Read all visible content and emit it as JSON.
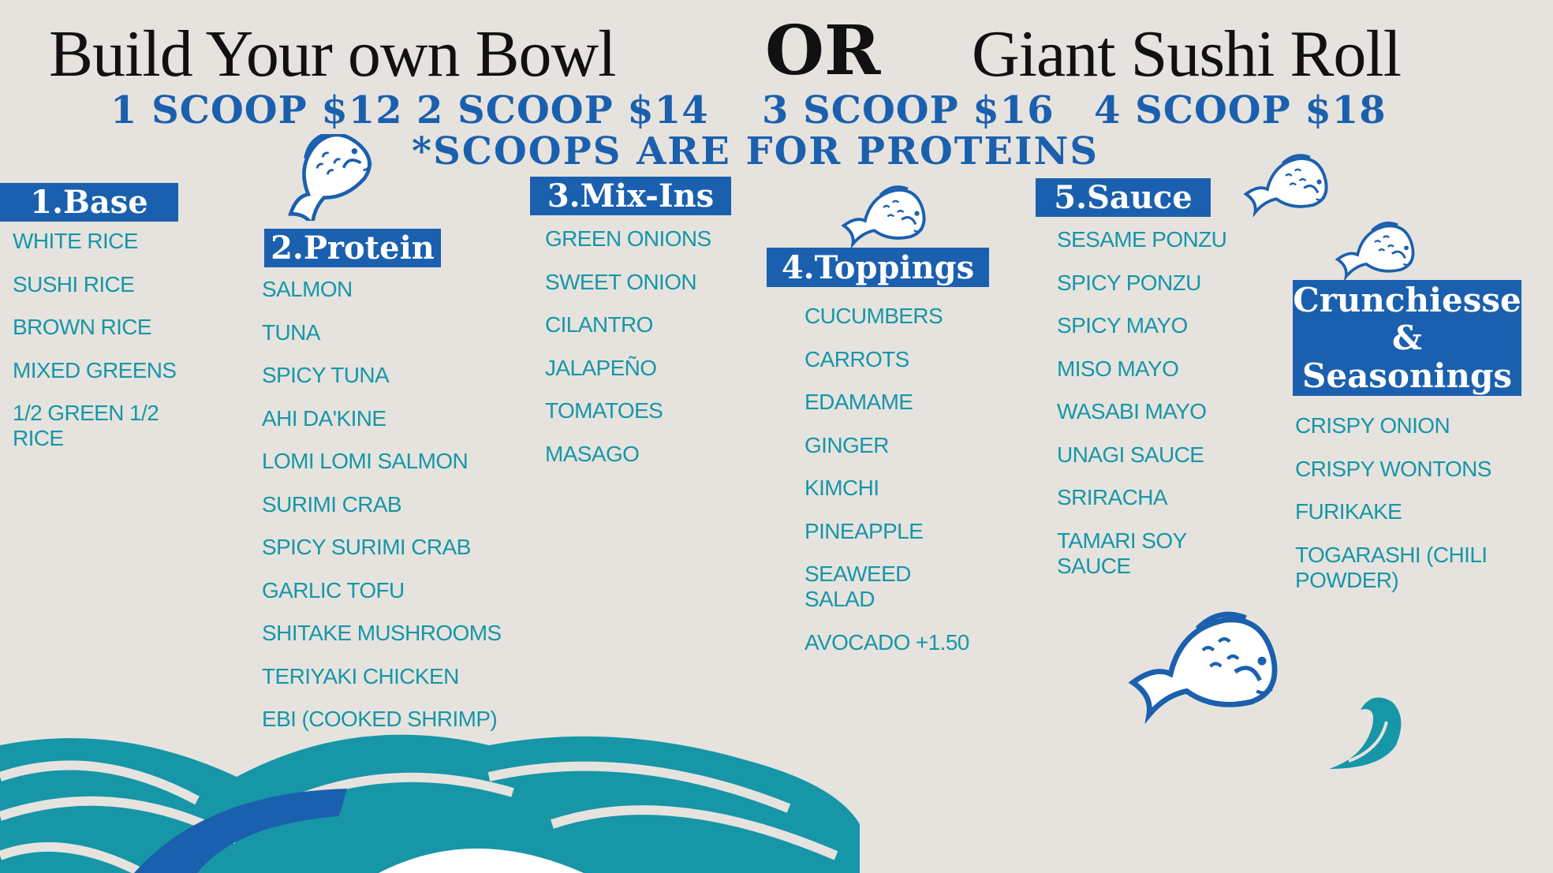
{
  "header": {
    "left_title": "Build Your own Bowl",
    "or": "OR",
    "right_title": "Giant Sushi Roll",
    "prices": [
      "1 SCOOP $12",
      "2 SCOOP $14",
      "3 SCOOP $16",
      "4 SCOOP $18"
    ],
    "note": "*SCOOPS ARE FOR PROTEINS"
  },
  "colors": {
    "blue": "#1b60ae",
    "teal": "#1796a8",
    "background": "#e6e3de"
  },
  "sections": {
    "base": {
      "title": "1.Base",
      "items": [
        "WHITE RICE",
        "SUSHI RICE",
        "BROWN RICE",
        "MIXED GREENS",
        "1/2 GREEN 1/2\nRICE"
      ]
    },
    "protein": {
      "title": "2.Protein",
      "items": [
        "SALMON",
        "TUNA",
        "SPICY TUNA",
        "AHI DA'KINE",
        "LOMI LOMI SALMON",
        "SURIMI CRAB",
        "SPICY SURIMI CRAB",
        "GARLIC TOFU",
        "SHITAKE MUSHROOMS",
        "TERIYAKI CHICKEN",
        "EBI (COOKED SHRIMP)"
      ]
    },
    "mixins": {
      "title": "3.Mix-Ins",
      "items": [
        "GREEN ONIONS",
        "SWEET ONION",
        "CILANTRO",
        "JALAPEÑO",
        "TOMATOES",
        "MASAGO"
      ]
    },
    "toppings": {
      "title": "4.Toppings",
      "items": [
        "CUCUMBERS",
        "CARROTS",
        "EDAMAME",
        "GINGER",
        "KIMCHI",
        "PINEAPPLE",
        "SEAWEED\nSALAD",
        "AVOCADO +1.50"
      ]
    },
    "sauce": {
      "title": "5.Sauce",
      "items": [
        "SESAME PONZU",
        "SPICY PONZU",
        "SPICY MAYO",
        "MISO MAYO",
        "WASABI MAYO",
        "UNAGI SAUCE",
        "SRIRACHA",
        "TAMARI SOY\nSAUCE"
      ]
    },
    "crunch": {
      "title_lines": [
        "Crunchiesse",
        "&",
        "Seasonings"
      ],
      "items": [
        "CRISPY ONION",
        "CRISPY WONTONS",
        "FURIKAKE",
        "TOGARASHI (CHILI\nPOWDER)"
      ]
    }
  }
}
